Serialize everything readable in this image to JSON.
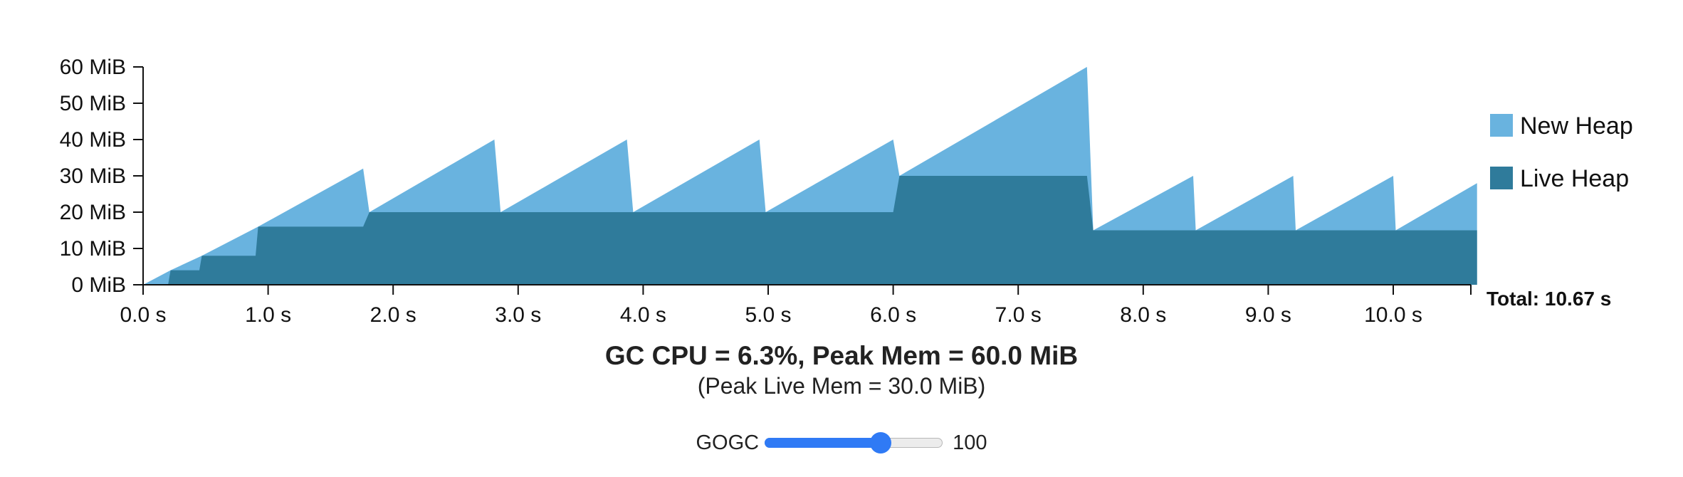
{
  "chart_data": {
    "type": "area",
    "title": "",
    "xlabel": "",
    "ylabel": "",
    "x_ticks": [
      "0.0 s",
      "1.0 s",
      "2.0 s",
      "3.0 s",
      "4.0 s",
      "5.0 s",
      "6.0 s",
      "7.0 s",
      "8.0 s",
      "9.0 s",
      "10.0 s"
    ],
    "y_ticks": [
      "0 MiB",
      "10 MiB",
      "20 MiB",
      "30 MiB",
      "40 MiB",
      "50 MiB",
      "60 MiB"
    ],
    "xlim": [
      0,
      10.67
    ],
    "ylim": [
      0,
      60
    ],
    "x_unit": "s",
    "y_unit": "MiB",
    "legend_position": "right",
    "series": [
      {
        "name": "New Heap",
        "color": "#69b3df",
        "x": [
          0,
          0.22,
          0.22,
          0.47,
          0.47,
          0.92,
          0.92,
          1.76,
          1.81,
          2.81,
          2.86,
          3.87,
          3.92,
          4.93,
          4.98,
          6.0,
          6.05,
          7.55,
          7.6,
          8.4,
          8.42,
          9.2,
          9.22,
          10.0,
          10.02,
          10.67,
          10.67
        ],
        "y": [
          0,
          4,
          4,
          8,
          8,
          16,
          16,
          32,
          20,
          40,
          20,
          40,
          20,
          40,
          20,
          40,
          30,
          60,
          15,
          30,
          15,
          30,
          15,
          30,
          15,
          28,
          0
        ]
      },
      {
        "name": "Live Heap",
        "color": "#2f7b9b",
        "x": [
          0,
          0.2,
          0.22,
          0.45,
          0.47,
          0.9,
          0.92,
          1.76,
          1.81,
          6.0,
          6.05,
          7.55,
          7.6,
          10.67,
          10.67
        ],
        "y": [
          0,
          0,
          4,
          4,
          8,
          8,
          16,
          16,
          20,
          20,
          30,
          30,
          15,
          15,
          0
        ]
      }
    ],
    "annotations": {
      "total": "Total: 10.67 s"
    }
  },
  "summary": {
    "gc_cpu_line": "GC CPU = 6.3%, Peak Mem = 60.0 MiB",
    "peak_live_line": "(Peak Live Mem = 30.0 MiB)"
  },
  "gogc": {
    "label": "GOGC",
    "value": "100",
    "slider_fraction": 0.65,
    "accent_color": "#2f7af5"
  }
}
